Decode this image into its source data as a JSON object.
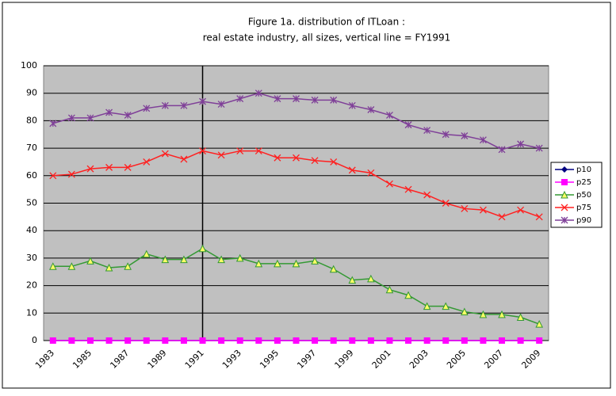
{
  "chart_data": {
    "type": "line",
    "title": "Figure 1a. distribution of ITLoan :",
    "subtitle": "real estate industry, all sizes, vertical line = FY1991",
    "categories": [
      "1983",
      null,
      "1985",
      null,
      "1987",
      null,
      "1989",
      null,
      "1991",
      null,
      "1993",
      null,
      "1995",
      null,
      "1997",
      null,
      "1999",
      null,
      "2001",
      null,
      "2003",
      null,
      "2005",
      null,
      "2007",
      null,
      "2009"
    ],
    "vline": "1991",
    "ylim": [
      0,
      100
    ],
    "yticks": [
      0,
      10,
      20,
      30,
      40,
      50,
      60,
      70,
      80,
      90,
      100
    ],
    "grid": true,
    "legend": "right",
    "series": [
      {
        "name": "p10",
        "color": "#000080",
        "marker": "diamond",
        "values": [
          0,
          0,
          0,
          0,
          0,
          0,
          0,
          0,
          0,
          0,
          0,
          0,
          0,
          0,
          0,
          0,
          0,
          0,
          0,
          0,
          0,
          0,
          0,
          0,
          0,
          0,
          0
        ]
      },
      {
        "name": "p25",
        "color": "#ff00ff",
        "marker": "square",
        "values": [
          0,
          0,
          0,
          0,
          0,
          0,
          0,
          0,
          0,
          0,
          0,
          0,
          0,
          0,
          0,
          0,
          0,
          0,
          0,
          0,
          0,
          0,
          0,
          0,
          0,
          0,
          0
        ]
      },
      {
        "name": "p50",
        "color": "#339933",
        "marker": "triangle",
        "values": [
          27,
          27,
          29,
          26.5,
          27,
          31.5,
          29.5,
          29.5,
          33.5,
          29.5,
          30,
          28,
          28,
          28,
          29,
          26,
          22,
          22.5,
          18.5,
          16.5,
          12.5,
          12.5,
          10.5,
          9.5,
          9.5,
          8.5,
          6
        ]
      },
      {
        "name": "p75",
        "color": "#ff2020",
        "marker": "x",
        "values": [
          60,
          60.5,
          62.5,
          63,
          63,
          65,
          68,
          66,
          69,
          67.5,
          69,
          69,
          66.5,
          66.5,
          65.5,
          65,
          62,
          61,
          57,
          55,
          53,
          50,
          48,
          47.5,
          45,
          47.5,
          45
        ]
      },
      {
        "name": "p90",
        "color": "#7f3f98",
        "marker": "star",
        "values": [
          79,
          81,
          81,
          83,
          82,
          84.5,
          85.5,
          85.5,
          87,
          86,
          88,
          90,
          88,
          88,
          87.5,
          87.5,
          85.5,
          84,
          82,
          78.5,
          76.5,
          75,
          74.5,
          73,
          69.5,
          71.5,
          70
        ]
      }
    ]
  }
}
